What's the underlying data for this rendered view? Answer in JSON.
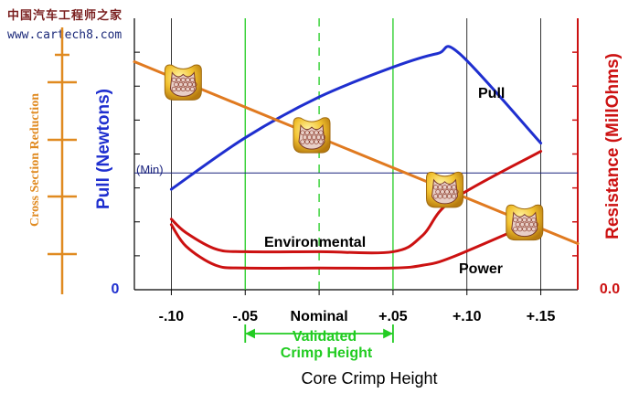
{
  "watermark": {
    "cn": "中国汽车工程师之家",
    "url": "www.cartech8.com"
  },
  "colors": {
    "pull": "#1f2fcf",
    "resistance": "#cc1111",
    "cross_section": "#e07a20",
    "validated": "#22cc22",
    "grid": "#000000",
    "min_line": "#1a237e",
    "left_axis_label": "#1f2fcf",
    "right_axis_label": "#cc1111",
    "cross_axis_label": "#e08a20"
  },
  "chart_data": {
    "type": "line",
    "title": "",
    "xlabel": "Core Crimp Height",
    "x_ticks": [
      "-.10",
      "-.05",
      "Nominal",
      "+.05",
      "+.10",
      "+.15"
    ],
    "x_tick_values": [
      -0.1,
      -0.05,
      0,
      0.05,
      0.1,
      0.15
    ],
    "xlim": [
      -0.125,
      0.175
    ],
    "left_axis": {
      "label": "Pull (Newtons)",
      "bottom_tick": "0",
      "ylim": [
        0,
        1
      ]
    },
    "right_axis": {
      "label": "Resistance (MillOhms)",
      "bottom_tick": "0.0",
      "ylim": [
        0,
        1
      ]
    },
    "cross_axis": {
      "label": "Cross Section Reduction"
    },
    "min_line": {
      "label": "(Min)",
      "y": 0.43
    },
    "validated_region": {
      "label_line1": "Validated",
      "label_line2": "Crimp Height",
      "x_range": [
        -0.05,
        0.05
      ],
      "center": 0
    },
    "series": [
      {
        "name": "Pull",
        "color_key": "pull",
        "x": [
          -0.1,
          -0.05,
          0,
          0.05,
          0.08,
          0.095,
          0.15
        ],
        "y": [
          0.37,
          0.56,
          0.71,
          0.82,
          0.87,
          0.87,
          0.54
        ]
      },
      {
        "name": "Environmental",
        "color_key": "resistance",
        "x": [
          -0.1,
          -0.09,
          -0.07,
          -0.05,
          0,
          0.05,
          0.07,
          0.09,
          0.15
        ],
        "y": [
          0.26,
          0.21,
          0.15,
          0.14,
          0.14,
          0.14,
          0.2,
          0.33,
          0.51
        ]
      },
      {
        "name": "Power",
        "color_key": "resistance",
        "x": [
          -0.1,
          -0.09,
          -0.07,
          -0.05,
          0,
          0.05,
          0.07,
          0.09,
          0.15
        ],
        "y": [
          0.24,
          0.16,
          0.09,
          0.08,
          0.08,
          0.08,
          0.09,
          0.12,
          0.26
        ]
      },
      {
        "name": "",
        "color_key": "cross_section",
        "x": [
          -0.125,
          0.175
        ],
        "y": [
          0.84,
          0.17
        ]
      }
    ]
  }
}
